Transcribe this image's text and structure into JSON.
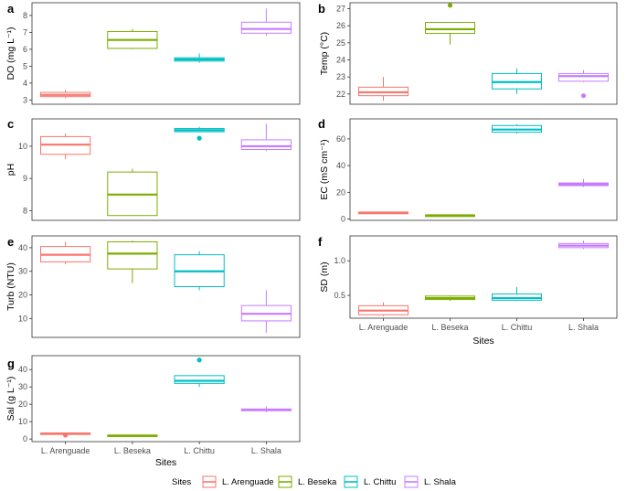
{
  "figure": {
    "x_axis_title": "Sites",
    "legend_title": "Sites"
  },
  "series": [
    {
      "name": "L. Arenguade",
      "color": "#F8766D"
    },
    {
      "name": "L. Beseka",
      "color": "#7CAE00"
    },
    {
      "name": "L. Chittu",
      "color": "#00BFC4"
    },
    {
      "name": "L. Shala",
      "color": "#C77CFF"
    }
  ],
  "chart_data": [
    {
      "type": "box",
      "panel": "a",
      "ylabel": "DO (mg L⁻¹)",
      "categories": [
        "L. Arenguade",
        "L. Beseka",
        "L. Chittu",
        "L. Shala"
      ],
      "ylim": [
        2.75,
        8.75
      ],
      "yticks": [
        3,
        4,
        5,
        6,
        7,
        8
      ],
      "boxes": [
        {
          "whisker_low": 3.1,
          "q1": 3.2,
          "median": 3.3,
          "q3": 3.45,
          "whisker_high": 3.6,
          "outliers": []
        },
        {
          "whisker_low": 6.0,
          "q1": 6.05,
          "median": 6.55,
          "q3": 7.05,
          "whisker_high": 7.2,
          "outliers": []
        },
        {
          "whisker_low": 5.2,
          "q1": 5.3,
          "median": 5.4,
          "q3": 5.5,
          "whisker_high": 5.75,
          "outliers": []
        },
        {
          "whisker_low": 6.8,
          "q1": 6.95,
          "median": 7.2,
          "q3": 7.6,
          "whisker_high": 8.4,
          "outliers": []
        }
      ],
      "show_x_labels": false
    },
    {
      "type": "box",
      "panel": "b",
      "ylabel": "Temp (°C)",
      "categories": [
        "L. Arenguade",
        "L. Beseka",
        "L. Chittu",
        "L. Shala"
      ],
      "ylim": [
        21.4,
        27.35
      ],
      "yticks": [
        22,
        23,
        24,
        25,
        26,
        27
      ],
      "boxes": [
        {
          "whisker_low": 21.6,
          "q1": 21.9,
          "median": 22.1,
          "q3": 22.4,
          "whisker_high": 23.0,
          "outliers": []
        },
        {
          "whisker_low": 24.9,
          "q1": 25.55,
          "median": 25.8,
          "q3": 26.2,
          "whisker_high": 26.2,
          "outliers": [
            27.2
          ]
        },
        {
          "whisker_low": 22.0,
          "q1": 22.3,
          "median": 22.7,
          "q3": 23.2,
          "whisker_high": 23.5,
          "outliers": []
        },
        {
          "whisker_low": 22.7,
          "q1": 22.75,
          "median": 23.05,
          "q3": 23.2,
          "whisker_high": 23.4,
          "outliers": [
            21.9
          ]
        }
      ],
      "show_x_labels": false
    },
    {
      "type": "box",
      "panel": "c",
      "ylabel": "pH",
      "categories": [
        "L. Arenguade",
        "L. Beseka",
        "L. Chittu",
        "L. Shala"
      ],
      "ylim": [
        7.7,
        10.85
      ],
      "yticks": [
        8,
        9,
        10
      ],
      "boxes": [
        {
          "whisker_low": 9.6,
          "q1": 9.75,
          "median": 10.05,
          "q3": 10.3,
          "whisker_high": 10.4,
          "outliers": []
        },
        {
          "whisker_low": 7.85,
          "q1": 7.85,
          "median": 8.5,
          "q3": 9.2,
          "whisker_high": 9.3,
          "outliers": []
        },
        {
          "whisker_low": 10.45,
          "q1": 10.45,
          "median": 10.5,
          "q3": 10.55,
          "whisker_high": 10.6,
          "outliers": [
            10.25
          ]
        },
        {
          "whisker_low": 9.85,
          "q1": 9.9,
          "median": 10.0,
          "q3": 10.2,
          "whisker_high": 10.7,
          "outliers": []
        }
      ],
      "show_x_labels": false
    },
    {
      "type": "box",
      "panel": "d",
      "ylabel": "EC (mS cm⁻¹)",
      "categories": [
        "L. Arenguade",
        "L. Beseka",
        "L. Chittu",
        "L. Shala"
      ],
      "ylim": [
        -1,
        75
      ],
      "yticks": [
        0,
        20,
        40,
        60
      ],
      "boxes": [
        {
          "whisker_low": 4.5,
          "q1": 4.6,
          "median": 4.8,
          "q3": 5.0,
          "whisker_high": 5.2,
          "outliers": []
        },
        {
          "whisker_low": 2.5,
          "q1": 2.6,
          "median": 2.8,
          "q3": 2.9,
          "whisker_high": 3.0,
          "outliers": []
        },
        {
          "whisker_low": 64,
          "q1": 65,
          "median": 67,
          "q3": 70,
          "whisker_high": 71,
          "outliers": []
        },
        {
          "whisker_low": 24,
          "q1": 25,
          "median": 26,
          "q3": 27,
          "whisker_high": 30,
          "outliers": []
        }
      ],
      "show_x_labels": false
    },
    {
      "type": "box",
      "panel": "e",
      "ylabel": "Turb (NTU)",
      "categories": [
        "L. Arenguade",
        "L. Beseka",
        "L. Chittu",
        "L. Shala"
      ],
      "ylim": [
        2,
        45
      ],
      "yticks": [
        10,
        20,
        30,
        40
      ],
      "boxes": [
        {
          "whisker_low": 33,
          "q1": 34,
          "median": 37,
          "q3": 40.5,
          "whisker_high": 42.5,
          "outliers": []
        },
        {
          "whisker_low": 25,
          "q1": 31,
          "median": 37.5,
          "q3": 42.5,
          "whisker_high": 43,
          "outliers": []
        },
        {
          "whisker_low": 22,
          "q1": 23.5,
          "median": 30,
          "q3": 37,
          "whisker_high": 38.5,
          "outliers": []
        },
        {
          "whisker_low": 4,
          "q1": 9,
          "median": 12,
          "q3": 15.5,
          "whisker_high": 22,
          "outliers": []
        }
      ],
      "show_x_labels": false
    },
    {
      "type": "box",
      "panel": "f",
      "ylabel": "SD (m)",
      "categories": [
        "L. Arenguade",
        "L. Beseka",
        "L. Chittu",
        "L. Shala"
      ],
      "ylim": [
        0.17,
        1.36
      ],
      "yticks": [
        0.5,
        1.0
      ],
      "ytick_labels": [
        "0.5",
        "1.0"
      ],
      "boxes": [
        {
          "whisker_low": 0.2,
          "q1": 0.22,
          "median": 0.28,
          "q3": 0.35,
          "whisker_high": 0.4,
          "outliers": []
        },
        {
          "whisker_low": 0.42,
          "q1": 0.44,
          "median": 0.46,
          "q3": 0.49,
          "whisker_high": 0.5,
          "outliers": []
        },
        {
          "whisker_low": 0.42,
          "q1": 0.43,
          "median": 0.46,
          "q3": 0.52,
          "whisker_high": 0.62,
          "outliers": []
        },
        {
          "whisker_low": 1.17,
          "q1": 1.19,
          "median": 1.22,
          "q3": 1.25,
          "whisker_high": 1.29,
          "outliers": []
        }
      ],
      "show_x_labels": true
    },
    {
      "type": "box",
      "panel": "g",
      "ylabel": "Sal (g L⁻¹)",
      "categories": [
        "L. Arenguade",
        "L. Beseka",
        "L. Chittu",
        "L. Shala"
      ],
      "ylim": [
        -1.5,
        48
      ],
      "yticks": [
        0,
        10,
        20,
        30,
        40
      ],
      "boxes": [
        {
          "whisker_low": 2.8,
          "q1": 3.0,
          "median": 3.2,
          "q3": 3.4,
          "whisker_high": 3.5,
          "outliers": [
            2.2
          ]
        },
        {
          "whisker_low": 1.6,
          "q1": 1.8,
          "median": 2.0,
          "q3": 2.2,
          "whisker_high": 2.3,
          "outliers": []
        },
        {
          "whisker_low": 30,
          "q1": 32,
          "median": 33.5,
          "q3": 36.5,
          "whisker_high": 36.5,
          "outliers": [
            45.5
          ]
        },
        {
          "whisker_low": 15.5,
          "q1": 16.3,
          "median": 16.8,
          "q3": 17.3,
          "whisker_high": 18.8,
          "outliers": []
        }
      ],
      "show_x_labels": true
    }
  ]
}
